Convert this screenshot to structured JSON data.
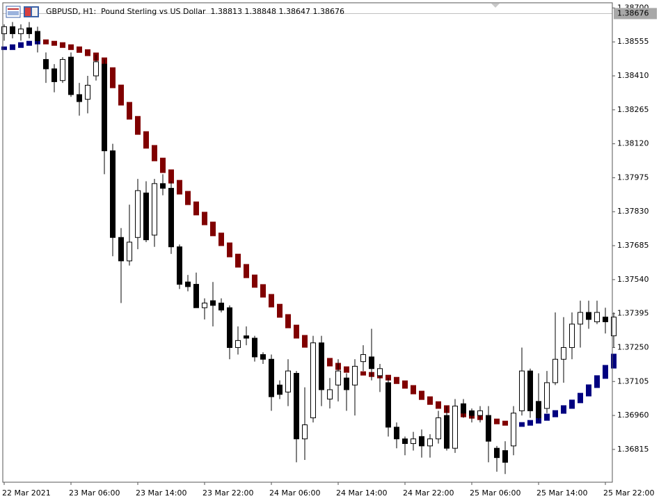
{
  "chart_data": {
    "type": "candlestick",
    "title": "GBPUSD, H1:  Pound Sterling vs US Dollar  1.38813 1.38848 1.38647 1.38676",
    "current_price": 1.38676,
    "categories": [
      "22 Mar 2021",
      null,
      null,
      null,
      null,
      null,
      null,
      null,
      "23 Mar 06:00",
      null,
      null,
      null,
      null,
      null,
      null,
      null,
      "23 Mar 14:00",
      null,
      null,
      null,
      null,
      null,
      null,
      null,
      "23 Mar 22:00",
      null,
      null,
      null,
      null,
      null,
      null,
      null,
      "24 Mar 06:00",
      null,
      null,
      null,
      null,
      null,
      null,
      null,
      "24 Mar 14:00",
      null,
      null,
      null,
      null,
      null,
      null,
      null,
      "24 Mar 22:00",
      null,
      null,
      null,
      null,
      null,
      null,
      null,
      "25 Mar 06:00",
      null,
      null,
      null,
      null,
      null,
      null,
      null,
      "25 Mar 14:00",
      null,
      null,
      null,
      null,
      null,
      null,
      null,
      "25 Mar 22:00",
      null
    ],
    "open": [
      1.3859,
      1.3862,
      1.3859,
      1.38615,
      1.386,
      1.3848,
      1.3844,
      1.3839,
      1.3849,
      1.3833,
      1.3831,
      1.3841,
      1.3846,
      1.3809,
      1.3772,
      1.3762,
      1.3772,
      1.3791,
      1.3773,
      1.3795,
      1.3793,
      1.3768,
      1.3753,
      1.3752,
      1.3742,
      1.3745,
      1.3744,
      1.3742,
      1.3725,
      1.373,
      1.3729,
      1.3722,
      1.372,
      1.3709,
      1.3706,
      1.3714,
      1.3686,
      1.3695,
      1.3727,
      1.3703,
      1.3709,
      1.3712,
      1.3709,
      1.3719,
      1.3721,
      1.3713,
      1.371,
      1.3691,
      1.3686,
      1.3684,
      1.3687,
      1.3683,
      1.3686,
      1.3696,
      1.3682,
      1.3701,
      1.3698,
      1.3696,
      1.3696,
      1.3682,
      1.3681,
      1.3683,
      1.3698,
      1.3715,
      1.3702,
      1.3699,
      1.371,
      1.372,
      1.3725,
      1.3735,
      1.374,
      1.3736,
      1.3738,
      1.373
    ],
    "high": [
      1.3863,
      1.3864,
      1.3863,
      1.3864,
      1.3862,
      1.3851,
      1.3846,
      1.3849,
      1.3851,
      1.3838,
      1.3841,
      1.385,
      1.3848,
      1.3812,
      1.3776,
      1.3786,
      1.3797,
      1.3796,
      1.3797,
      1.3799,
      1.3796,
      1.3769,
      1.3756,
      1.3757,
      1.3746,
      1.3753,
      1.3746,
      1.3743,
      1.3734,
      1.3734,
      1.373,
      1.3723,
      1.3722,
      1.3711,
      1.372,
      1.3715,
      1.3708,
      1.373,
      1.373,
      1.3712,
      1.372,
      1.3714,
      1.372,
      1.3726,
      1.3733,
      1.3718,
      1.3712,
      1.3693,
      1.3687,
      1.3689,
      1.369,
      1.3688,
      1.3698,
      1.37,
      1.3703,
      1.3703,
      1.3699,
      1.37,
      1.37,
      1.3683,
      1.3685,
      1.37,
      1.3725,
      1.3716,
      1.3714,
      1.3715,
      1.374,
      1.3738,
      1.374,
      1.3745,
      1.3745,
      1.3745,
      1.3742,
      1.374
    ],
    "low": [
      1.3856,
      1.3857,
      1.3856,
      1.3857,
      1.3851,
      1.3838,
      1.3834,
      1.3838,
      1.3832,
      1.3824,
      1.3825,
      1.3839,
      1.3799,
      1.3764,
      1.3744,
      1.376,
      1.3767,
      1.377,
      1.3768,
      1.379,
      1.3765,
      1.375,
      1.3749,
      1.3742,
      1.3737,
      1.3734,
      1.374,
      1.372,
      1.3722,
      1.3726,
      1.3719,
      1.3718,
      1.3698,
      1.3703,
      1.37,
      1.3676,
      1.3677,
      1.3693,
      1.37,
      1.3699,
      1.3702,
      1.3698,
      1.3696,
      1.3715,
      1.3711,
      1.3706,
      1.3687,
      1.3682,
      1.3679,
      1.3681,
      1.3678,
      1.3678,
      1.3684,
      1.3681,
      1.368,
      1.3695,
      1.3693,
      1.3693,
      1.3676,
      1.3672,
      1.3671,
      1.3679,
      1.3696,
      1.3695,
      1.3694,
      1.3697,
      1.3709,
      1.371,
      1.372,
      1.3725,
      1.3733,
      1.3735,
      1.3731,
      1.3725
    ],
    "close": [
      1.3862,
      1.3859,
      1.3861,
      1.3859,
      1.3856,
      1.3844,
      1.38385,
      1.3848,
      1.3833,
      1.383,
      1.3837,
      1.3847,
      1.3809,
      1.3772,
      1.3762,
      1.377,
      1.3792,
      1.3771,
      1.3795,
      1.3793,
      1.3768,
      1.3752,
      1.3751,
      1.3742,
      1.3744,
      1.3743,
      1.3741,
      1.3725,
      1.3728,
      1.3729,
      1.3721,
      1.372,
      1.3704,
      1.3705,
      1.3715,
      1.3686,
      1.3692,
      1.3727,
      1.3707,
      1.3707,
      1.3715,
      1.3707,
      1.3717,
      1.3722,
      1.3716,
      1.3716,
      1.3691,
      1.3686,
      1.3684,
      1.3686,
      1.3683,
      1.3686,
      1.3695,
      1.3682,
      1.37,
      1.3697,
      1.3696,
      1.3698,
      1.3685,
      1.3678,
      1.3676,
      1.3697,
      1.3715,
      1.3698,
      1.3695,
      1.371,
      1.372,
      1.3725,
      1.3735,
      1.374,
      1.3737,
      1.374,
      1.3736,
      1.3738
    ],
    "up_color": "#ffffff",
    "down_color": "#000000",
    "candle_outline": "#000000",
    "indicator": {
      "up_color": "#000080",
      "down_color": "#800000",
      "values": [
        1.38528,
        1.38537,
        1.38546,
        1.38552,
        1.38558,
        1.38552,
        1.38546,
        1.38537,
        1.38528,
        1.38516,
        1.38502,
        1.38481,
        1.38439,
        1.38365,
        1.38291,
        1.38231,
        1.38166,
        1.38107,
        1.38053,
        1.38003,
        1.37958,
        1.37911,
        1.37866,
        1.37822,
        1.3778,
        1.37733,
        1.37691,
        1.37643,
        1.37599,
        1.37554,
        1.37513,
        1.37471,
        1.37429,
        1.37385,
        1.3734,
        1.37296,
        1.37257,
        1.37221,
        1.37198,
        1.37177,
        1.37162,
        1.3715,
        1.37141,
        1.37138,
        1.37132,
        1.37126,
        1.37117,
        1.37102,
        1.37082,
        1.37058,
        1.37034,
        1.37013,
        1.36996,
        1.36978,
        1.36966,
        1.3696,
        1.36954,
        1.36948,
        1.36939,
        1.3693,
        1.36924,
        1.36919,
        1.36924,
        1.36933,
        1.36945,
        1.3696,
        1.36975,
        1.36996,
        1.3702,
        1.37049,
        1.37085,
        1.37124,
        1.37168,
        1.37216
      ]
    },
    "ylim": [
      1.36675,
      1.38722
    ],
    "yticks": [
      {
        "value": 1.387,
        "label": "1.38700"
      },
      1.38555,
      {
        "value": 1.3841,
        "label": "1.38410"
      },
      1.38265,
      {
        "value": 1.3812,
        "label": "1.38120"
      },
      1.37975,
      {
        "value": 1.3783,
        "label": "1.37830"
      },
      1.37685,
      {
        "value": 1.3754,
        "label": "1.37540"
      },
      1.37395,
      {
        "value": 1.3725,
        "label": "1.37250"
      },
      1.37105,
      {
        "value": 1.3696,
        "label": "1.36960"
      },
      1.36815
    ]
  }
}
